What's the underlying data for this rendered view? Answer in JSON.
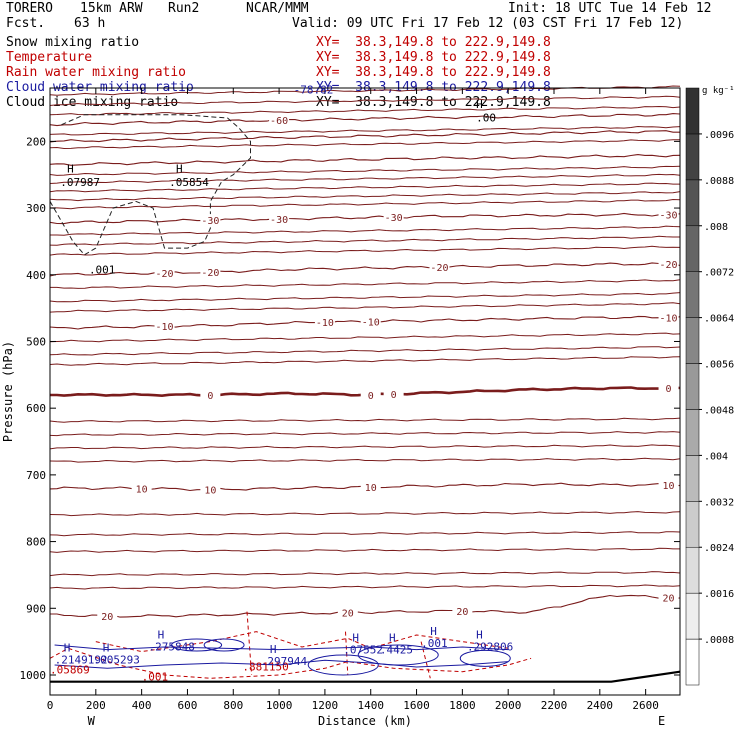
{
  "header": {
    "model": "TORERO",
    "resolution": "15km ARW",
    "run": "Run2",
    "center": "NCAR/MMM",
    "init": "Init: 18 UTC Tue 14 Feb 12",
    "fcst_label": "Fcst.",
    "fcst_value": "63 h",
    "valid": "Valid: 09 UTC Fri 17 Feb 12 (03 CST Fri 17 Feb 12)"
  },
  "fields": [
    {
      "label": "Snow mixing ratio",
      "xy": "XY=  38.3,149.8 to 222.9,149.8",
      "color": "#000000"
    },
    {
      "label": "Temperature",
      "xy": "XY=  38.3,149.8 to 222.9,149.8",
      "color": "#c00000"
    },
    {
      "label": "Rain water mixing ratio",
      "xy": "XY=  38.3,149.8 to 222.9,149.8",
      "color": "#c00000"
    },
    {
      "label": "Cloud water mixing ratio",
      "xy": "XY=  38.3,149.8 to 222.9,149.8",
      "color": "#1a1aa0"
    },
    {
      "label": "Cloud ice mixing ratio",
      "xy": "XY=  38.3,149.8 to 222.9,149.8",
      "color": "#000000"
    }
  ],
  "chart_data": {
    "type": "cross-section contour",
    "xlabel": "Distance (km)",
    "ylabel": "Pressure (hPa)",
    "xlim": [
      0,
      2750
    ],
    "ylim": [
      1030,
      120
    ],
    "x_ticks": [
      0,
      200,
      400,
      600,
      800,
      1000,
      1200,
      1400,
      1600,
      1800,
      2000,
      2200,
      2400,
      2600
    ],
    "x_tick_labels": [
      "0",
      "200",
      "400",
      "600",
      "800",
      "1000",
      "1200",
      "1400",
      "1600",
      "1800",
      "2000",
      "2200",
      "2400",
      "2600"
    ],
    "y_ticks": [
      200,
      300,
      400,
      500,
      600,
      700,
      800,
      900,
      1000
    ],
    "y_tick_labels": [
      "200",
      "300",
      "400",
      "500",
      "600",
      "700",
      "800",
      "900",
      "1000"
    ],
    "endpoint_left": "W",
    "endpoint_right": "E",
    "temperature_isotherms_c": [
      {
        "t": -60,
        "p": [
          175,
          172,
          170,
          168,
          166,
          164,
          163,
          161,
          160
        ],
        "labels": [
          [
            "-60",
            1000
          ]
        ]
      },
      {
        "t": -50,
        "p": [
          200,
          198,
          196,
          194,
          192,
          190,
          188,
          186,
          185
        ],
        "labels": []
      },
      {
        "t": -40,
        "p": [
          235,
          233,
          231,
          229,
          227,
          225,
          224,
          222,
          221
        ],
        "labels": []
      },
      {
        "t": -30,
        "p": [
          322,
          320,
          318,
          316,
          314,
          312,
          311,
          310,
          310
        ],
        "labels": [
          [
            "-30",
            700
          ],
          [
            "-30",
            1000
          ],
          [
            "-30",
            1500
          ],
          [
            "-30",
            2700
          ]
        ]
      },
      {
        "t": -20,
        "p": [
          400,
          398,
          396,
          392,
          390,
          388,
          386,
          384,
          384
        ],
        "labels": [
          [
            "-20",
            500
          ],
          [
            "-20",
            700
          ],
          [
            "-20",
            1700
          ],
          [
            "-20",
            2700
          ]
        ]
      },
      {
        "t": -10,
        "p": [
          480,
          478,
          476,
          472,
          470,
          468,
          466,
          464,
          464
        ],
        "labels": [
          [
            "-10",
            500
          ],
          [
            "-10",
            1200
          ],
          [
            "-10",
            1400
          ],
          [
            "-10",
            2700
          ]
        ]
      },
      {
        "t": 0,
        "p": [
          580,
          580,
          580,
          578,
          580,
          576,
          572,
          570,
          570
        ],
        "labels": [
          [
            "0",
            700
          ],
          [
            "0",
            1400
          ],
          [
            "0",
            1500
          ],
          [
            "0",
            2700
          ]
        ]
      },
      {
        "t": 10,
        "p": [
          720,
          720,
          722,
          720,
          718,
          716,
          714,
          715,
          715
        ],
        "labels": [
          [
            "10",
            400
          ],
          [
            "10",
            700
          ],
          [
            "10",
            1400
          ],
          [
            "10",
            2700
          ]
        ]
      },
      {
        "t": 20,
        "p": [
          910,
          912,
          910,
          908,
          906,
          904,
          906,
          880,
          885
        ],
        "labels": [
          [
            "20",
            250
          ],
          [
            "20",
            1300
          ],
          [
            "20",
            1800
          ],
          [
            "20",
            2700
          ]
        ]
      }
    ],
    "extra_isotherm_pressures": [
      130,
      145,
      160,
      190,
      210,
      250,
      262,
      275,
      288,
      300,
      340,
      355,
      370,
      420,
      440,
      455,
      500,
      520,
      535,
      620,
      640,
      660,
      680,
      760,
      790,
      815,
      850,
      870
    ],
    "isotherm_x_km": [
      0,
      350,
      700,
      1050,
      1400,
      1750,
      2100,
      2450,
      2750
    ],
    "tropopause_label": "-78.82",
    "surface_pressure_hpa": [
      1010,
      1010,
      1010,
      1010,
      1010,
      1010,
      1010,
      1010,
      995
    ],
    "snow_contour_label": ".001",
    "snow_max_labels": [
      {
        "mark": "H",
        "value": ".07987"
      },
      {
        "mark": "H",
        "value": ".05854"
      }
    ],
    "cloud_ice_label": ".00",
    "cloud_water_max_labels": [
      {
        "mark": "H",
        "value": ".2149192"
      },
      {
        "mark": "H",
        "value": ".005293"
      },
      {
        "mark": "H",
        "value": ".275848"
      },
      {
        "mark": "H",
        "value": ".297944"
      },
      {
        "mark": "H",
        "value": ".07552"
      },
      {
        "mark": "H",
        "value": ".4425"
      },
      {
        "mark": "H",
        "value": ".001"
      },
      {
        "mark": "H",
        "value": ".292806"
      }
    ],
    "rain_water_labels": [
      {
        "value": ".05869"
      },
      {
        "value": ".001"
      },
      {
        "value": ".881150"
      }
    ],
    "colorbar": {
      "unit": "g kg⁻¹",
      "levels": [
        ".0008",
        ".0016",
        ".0024",
        ".0032",
        ".004",
        ".0048",
        ".0056",
        ".0064",
        ".0072",
        ".008",
        ".0088",
        ".0096"
      ]
    }
  }
}
